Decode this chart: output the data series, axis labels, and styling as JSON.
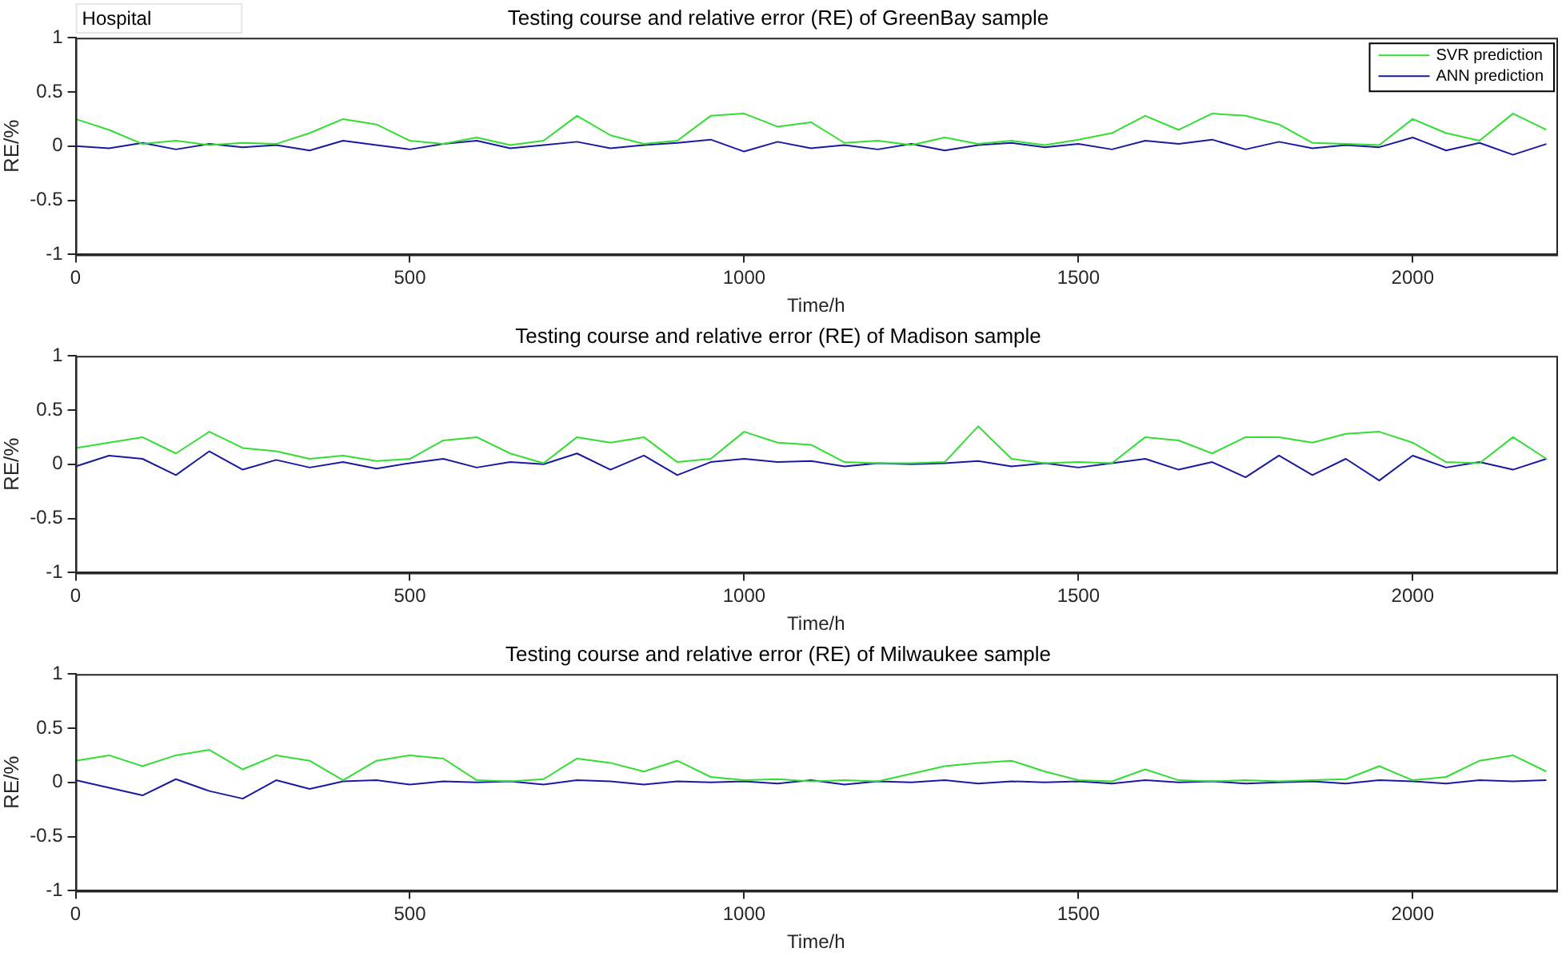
{
  "chart_data": [
    {
      "type": "line",
      "title": "Testing course and relative error (RE) of GreenBay sample",
      "xlabel": "Time/h",
      "ylabel": "RE/%",
      "annotations": [
        "Hospital"
      ],
      "legend": "top right",
      "marker": "none",
      "grid": false,
      "x": [
        0,
        50,
        100,
        150,
        200,
        250,
        300,
        350,
        400,
        450,
        500,
        550,
        600,
        650,
        700,
        750,
        800,
        850,
        900,
        950,
        1000,
        1050,
        1100,
        1150,
        1200,
        1250,
        1300,
        1350,
        1400,
        1450,
        1500,
        1550,
        1600,
        1650,
        1700,
        1750,
        1800,
        1850,
        1900,
        1950,
        2000,
        2050,
        2100,
        2150,
        2200
      ],
      "xlim": [
        0,
        2215
      ],
      "xticks": [
        0,
        500,
        1000,
        1500,
        2000
      ],
      "ylim": [
        -1,
        1
      ],
      "yticks": [
        -1,
        -0.5,
        0,
        0.5,
        1
      ],
      "series": [
        {
          "name": "SVR prediction",
          "color": "#33dd33",
          "values": [
            0.25,
            0.15,
            0.02,
            0.05,
            0.01,
            0.03,
            0.02,
            0.12,
            0.25,
            0.2,
            0.05,
            0.02,
            0.08,
            0.01,
            0.05,
            0.28,
            0.1,
            0.02,
            0.05,
            0.28,
            0.3,
            0.18,
            0.22,
            0.03,
            0.05,
            0.01,
            0.08,
            0.02,
            0.05,
            0.01,
            0.06,
            0.12,
            0.28,
            0.15,
            0.3,
            0.28,
            0.2,
            0.03,
            0.02,
            0.01,
            0.25,
            0.12,
            0.05,
            0.3,
            0.15
          ]
        },
        {
          "name": "ANN prediction",
          "color": "#1a1aa0",
          "values": [
            0,
            -0.02,
            0.03,
            -0.03,
            0.02,
            -0.01,
            0.01,
            -0.04,
            0.05,
            0.01,
            -0.03,
            0.02,
            0.05,
            -0.02,
            0.01,
            0.04,
            -0.02,
            0.01,
            0.03,
            0.06,
            -0.05,
            0.04,
            -0.02,
            0.01,
            -0.03,
            0.02,
            -0.04,
            0.01,
            0.03,
            -0.01,
            0.02,
            -0.03,
            0.05,
            0.02,
            0.06,
            -0.03,
            0.04,
            -0.02,
            0.01,
            -0.01,
            0.08,
            -0.04,
            0.03,
            -0.08,
            0.02
          ]
        }
      ]
    },
    {
      "type": "line",
      "title": "Testing course and relative error (RE) of Madison sample",
      "xlabel": "Time/h",
      "ylabel": "RE/%",
      "marker": "none",
      "grid": false,
      "x": [
        0,
        50,
        100,
        150,
        200,
        250,
        300,
        350,
        400,
        450,
        500,
        550,
        600,
        650,
        700,
        750,
        800,
        850,
        900,
        950,
        1000,
        1050,
        1100,
        1150,
        1200,
        1250,
        1300,
        1350,
        1400,
        1450,
        1500,
        1550,
        1600,
        1650,
        1700,
        1750,
        1800,
        1850,
        1900,
        1950,
        2000,
        2050,
        2100,
        2150,
        2200
      ],
      "xlim": [
        0,
        2215
      ],
      "xticks": [
        0,
        500,
        1000,
        1500,
        2000
      ],
      "ylim": [
        -1,
        1
      ],
      "yticks": [
        -1,
        -0.5,
        0,
        0.5,
        1
      ],
      "series": [
        {
          "color": "#33dd33",
          "values": [
            0.15,
            0.2,
            0.25,
            0.1,
            0.3,
            0.15,
            0.12,
            0.05,
            0.08,
            0.03,
            0.05,
            0.22,
            0.25,
            0.1,
            0.01,
            0.25,
            0.2,
            0.25,
            0.02,
            0.05,
            0.3,
            0.2,
            0.18,
            0.02,
            0.01,
            0.01,
            0.02,
            0.35,
            0.05,
            0.01,
            0.02,
            0.01,
            0.25,
            0.22,
            0.1,
            0.25,
            0.25,
            0.2,
            0.28,
            0.3,
            0.2,
            0.02,
            0.01,
            0.25,
            0.05
          ]
        },
        {
          "color": "#1a1aa0",
          "values": [
            -0.02,
            0.08,
            0.05,
            -0.1,
            0.12,
            -0.05,
            0.04,
            -0.03,
            0.02,
            -0.04,
            0.01,
            0.05,
            -0.03,
            0.02,
            0,
            0.1,
            -0.05,
            0.08,
            -0.1,
            0.02,
            0.05,
            0.02,
            0.03,
            -0.02,
            0.01,
            0,
            0.01,
            0.03,
            -0.02,
            0.01,
            -0.03,
            0.01,
            0.05,
            -0.05,
            0.02,
            -0.12,
            0.08,
            -0.1,
            0.05,
            -0.15,
            0.08,
            -0.03,
            0.02,
            -0.05,
            0.05
          ]
        }
      ]
    },
    {
      "type": "line",
      "title": "Testing course and relative error (RE) of Milwaukee sample",
      "xlabel": "Time/h",
      "ylabel": "RE/%",
      "marker": "none",
      "grid": false,
      "x": [
        0,
        50,
        100,
        150,
        200,
        250,
        300,
        350,
        400,
        450,
        500,
        550,
        600,
        650,
        700,
        750,
        800,
        850,
        900,
        950,
        1000,
        1050,
        1100,
        1150,
        1200,
        1250,
        1300,
        1350,
        1400,
        1450,
        1500,
        1550,
        1600,
        1650,
        1700,
        1750,
        1800,
        1850,
        1900,
        1950,
        2000,
        2050,
        2100,
        2150,
        2200
      ],
      "xlim": [
        0,
        2215
      ],
      "xticks": [
        0,
        500,
        1000,
        1500,
        2000
      ],
      "ylim": [
        -1,
        1
      ],
      "yticks": [
        -1,
        -0.5,
        0,
        0.5,
        1
      ],
      "series": [
        {
          "color": "#33dd33",
          "values": [
            0.2,
            0.25,
            0.15,
            0.25,
            0.3,
            0.12,
            0.25,
            0.2,
            0.02,
            0.2,
            0.25,
            0.22,
            0.02,
            0.01,
            0.03,
            0.22,
            0.18,
            0.1,
            0.2,
            0.05,
            0.02,
            0.03,
            0.01,
            0.02,
            0.01,
            0.08,
            0.15,
            0.18,
            0.2,
            0.1,
            0.02,
            0.01,
            0.12,
            0.02,
            0.01,
            0.02,
            0.01,
            0.02,
            0.03,
            0.15,
            0.02,
            0.05,
            0.2,
            0.25,
            0.1
          ]
        },
        {
          "color": "#1a1aa0",
          "values": [
            0.02,
            -0.05,
            -0.12,
            0.03,
            -0.08,
            -0.15,
            0.02,
            -0.06,
            0.01,
            0.02,
            -0.02,
            0.01,
            0,
            0.01,
            -0.02,
            0.02,
            0.01,
            -0.02,
            0.01,
            0,
            0.01,
            -0.01,
            0.02,
            -0.02,
            0.01,
            0,
            0.02,
            -0.01,
            0.01,
            0,
            0.01,
            -0.01,
            0.02,
            0,
            0.01,
            -0.01,
            0,
            0.01,
            -0.01,
            0.02,
            0.01,
            -0.01,
            0.02,
            0.01,
            0.02
          ]
        }
      ]
    }
  ]
}
